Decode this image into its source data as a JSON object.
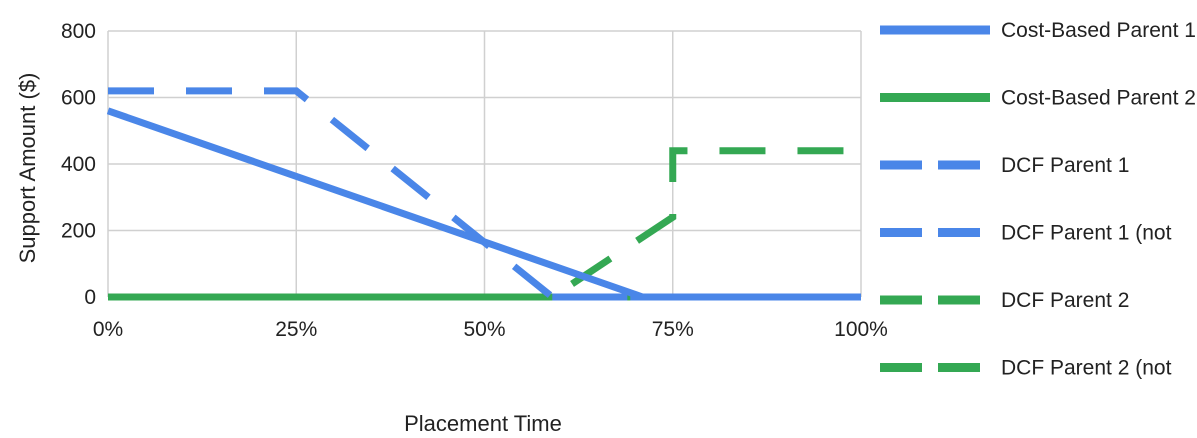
{
  "chart_data": {
    "type": "line",
    "xlabel": "Placement Time",
    "ylabel": "Support Amount ($)",
    "xlim": [
      0,
      100
    ],
    "ylim": [
      0,
      800
    ],
    "x_ticks": [
      "0%",
      "25%",
      "50%",
      "75%",
      "100%"
    ],
    "y_ticks": [
      "0",
      "200",
      "400",
      "600",
      "800"
    ],
    "grid": true,
    "legend_position": "right",
    "series": [
      {
        "name": "Cost-Based Parent 1",
        "color": "#4A86E8",
        "style": "solid",
        "x": [
          0,
          71,
          100
        ],
        "y": [
          560,
          0,
          0
        ]
      },
      {
        "name": "Cost-Based Parent 2",
        "color": "#34A853",
        "style": "solid",
        "x": [
          0,
          100
        ],
        "y": [
          0,
          0
        ]
      },
      {
        "name": "DCF Parent 1",
        "color": "#4A86E8",
        "style": "dashed",
        "x": [
          0,
          25,
          59,
          100
        ],
        "y": [
          620,
          620,
          0,
          0
        ]
      },
      {
        "name": "DCF Parent 1 (not",
        "color": "#4A86E8",
        "style": "dashed",
        "x": [
          59,
          100
        ],
        "y": [
          0,
          0
        ]
      },
      {
        "name": "DCF Parent 2",
        "color": "#34A853",
        "style": "dashed",
        "x": [
          0,
          59,
          75,
          75,
          100
        ],
        "y": [
          0,
          0,
          240,
          440,
          440
        ]
      },
      {
        "name": "DCF Parent 2 (not",
        "color": "#34A853",
        "style": "dashed",
        "x": [
          0,
          59
        ],
        "y": [
          0,
          0
        ]
      }
    ]
  }
}
